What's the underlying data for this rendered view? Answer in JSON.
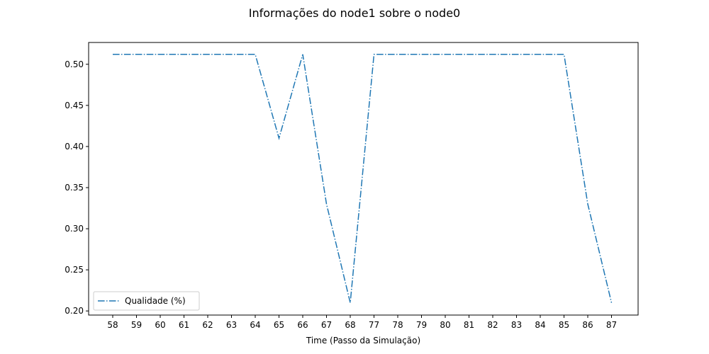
{
  "chart_data": {
    "type": "line",
    "title": "Informações do node1 sobre o node0",
    "xlabel": "Time (Passo da Simulação)",
    "ylabel": "",
    "x": [
      "58",
      "59",
      "60",
      "61",
      "62",
      "63",
      "64",
      "65",
      "66",
      "67",
      "68",
      "77",
      "78",
      "79",
      "80",
      "81",
      "82",
      "83",
      "84",
      "85",
      "86",
      "87"
    ],
    "series": [
      {
        "name": "Qualidade (%)",
        "values": [
          0.512,
          0.512,
          0.512,
          0.512,
          0.512,
          0.512,
          0.512,
          0.41,
          0.512,
          0.33,
          0.21,
          0.512,
          0.512,
          0.512,
          0.512,
          0.512,
          0.512,
          0.512,
          0.512,
          0.512,
          0.33,
          0.21
        ],
        "color": "#1f77b4",
        "line_style": "dash-dot"
      }
    ],
    "ylim": [
      0.195,
      0.5265
    ],
    "yticks": [
      0.2,
      0.25,
      0.3,
      0.35,
      0.4,
      0.45,
      0.5
    ],
    "ytick_labels": [
      "0.20",
      "0.25",
      "0.30",
      "0.35",
      "0.40",
      "0.45",
      "0.50"
    ],
    "grid": false,
    "legend_position": "lower-left"
  }
}
